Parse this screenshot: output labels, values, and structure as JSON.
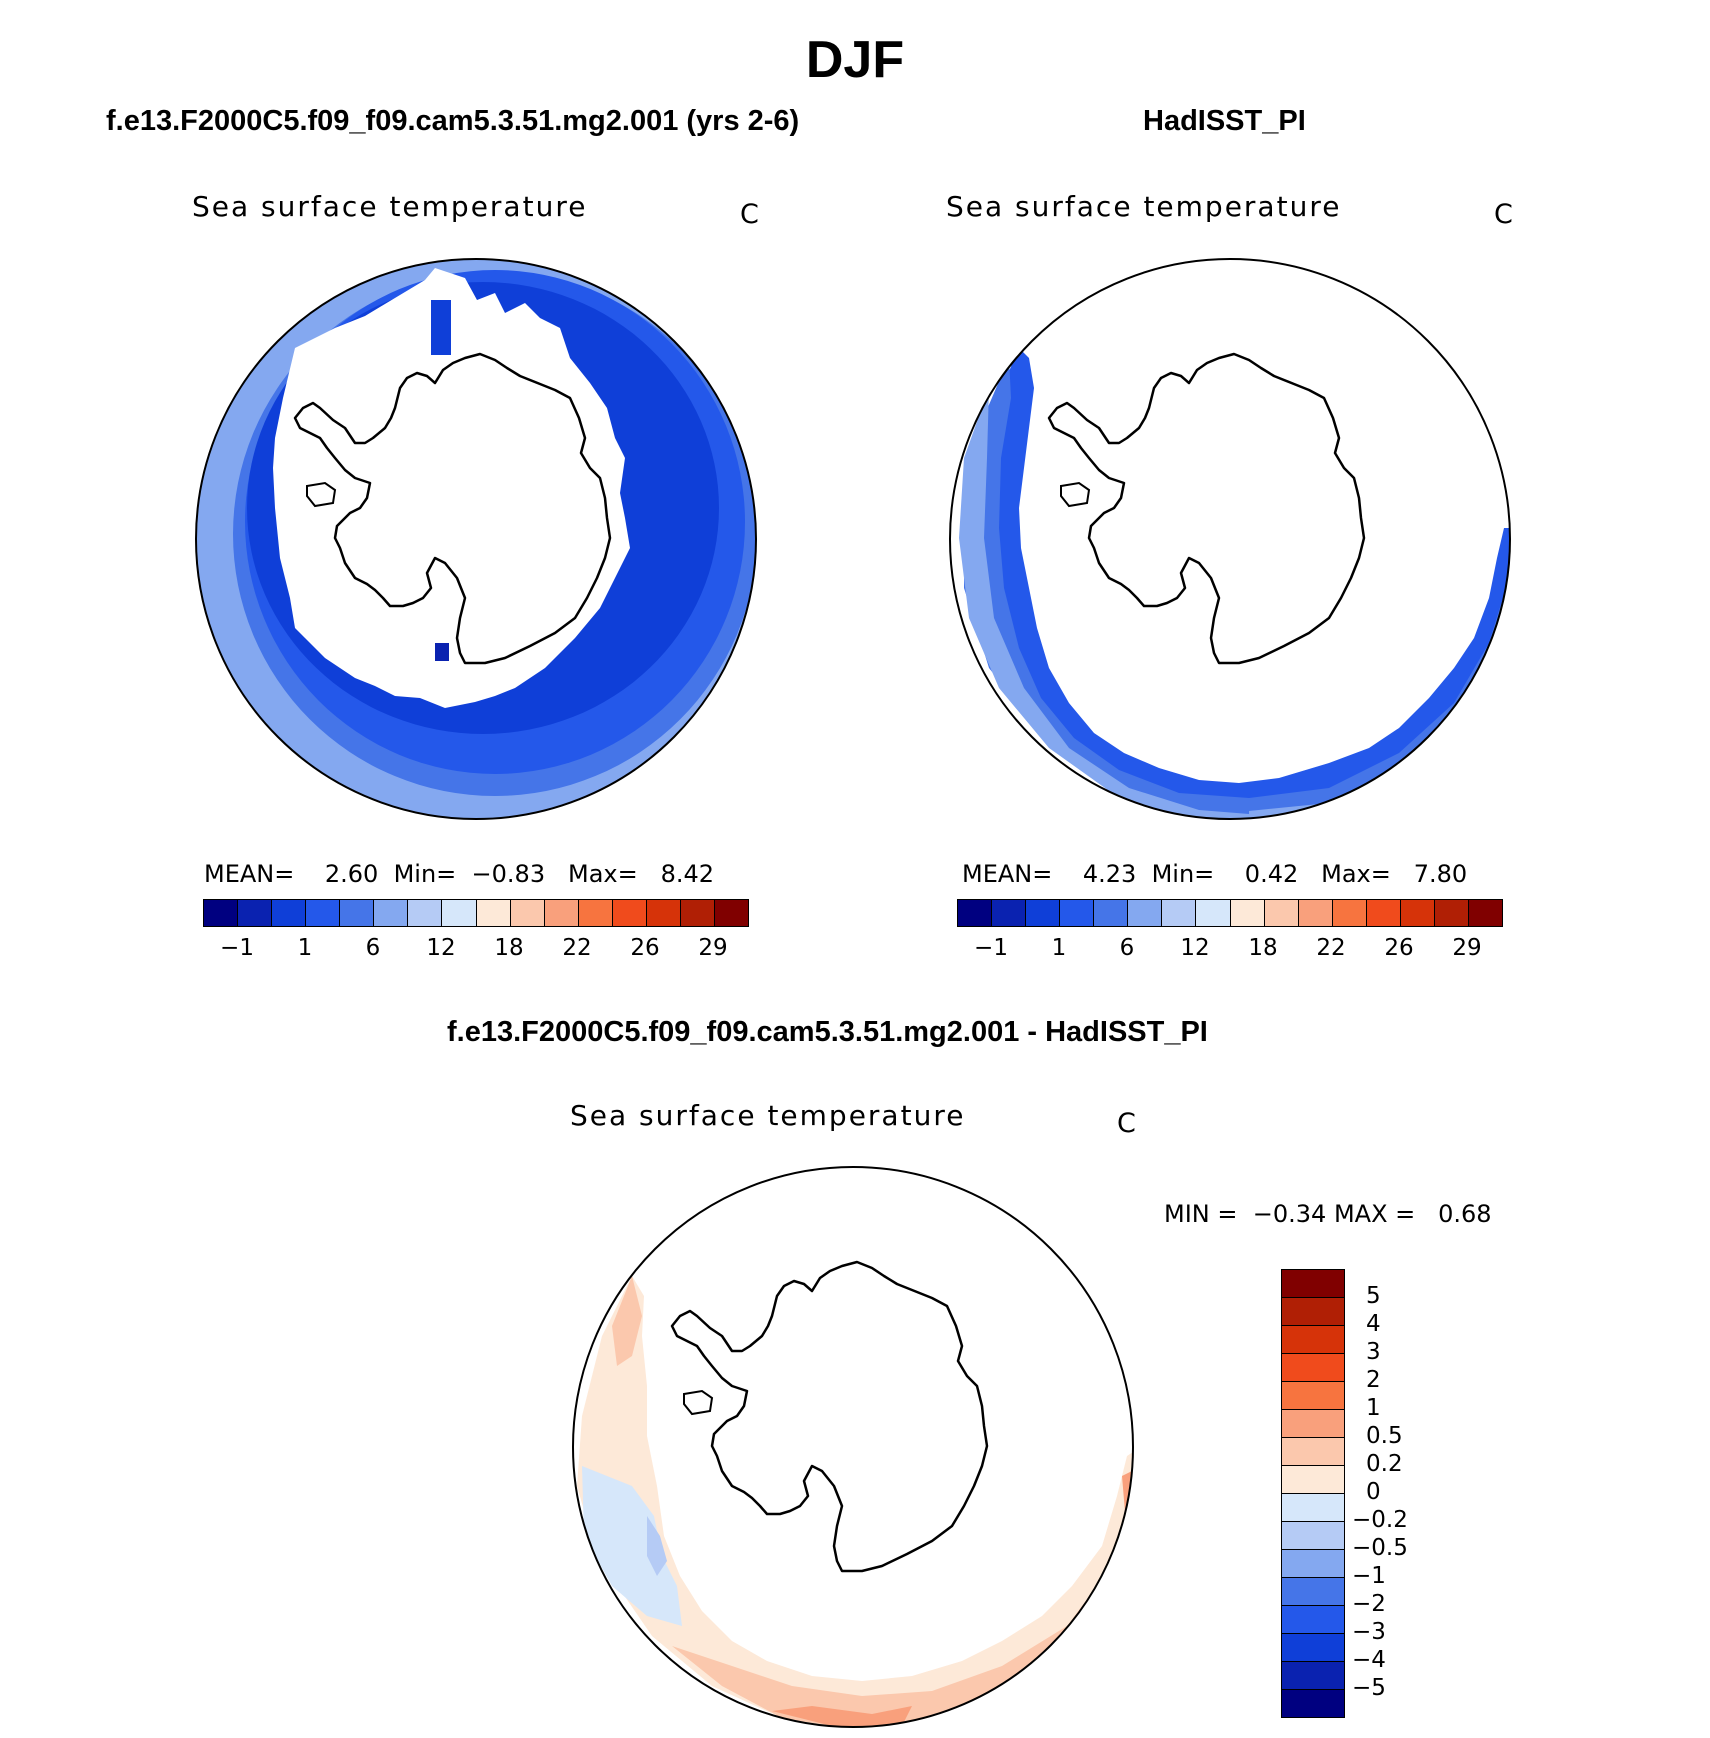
{
  "title": "DJF",
  "panels": {
    "model": {
      "title": "f.e13.F2000C5.f09_f09.cam5.3.51.mg2.001 (yrs 2-6)",
      "variable": "Sea surface temperature",
      "units": "C",
      "mean_label": "MEAN=",
      "mean": "2.60",
      "min_label": "Min=",
      "min": "−0.83",
      "max_label": "Max=",
      "max": "8.42"
    },
    "obs": {
      "title": "HadISST_PI",
      "variable": "Sea surface temperature",
      "units": "C",
      "mean_label": "MEAN=",
      "mean": "4.23",
      "min_label": "Min=",
      "min": "0.42",
      "max_label": "Max=",
      "max": "7.80"
    },
    "diff": {
      "title": "f.e13.F2000C5.f09_f09.cam5.3.51.mg2.001 - HadISST_PI",
      "variable": "Sea surface temperature",
      "units": "C",
      "min_label": "MIN =",
      "min": "−0.34",
      "max_label": "MAX =",
      "max": "0.68"
    }
  },
  "colorbars": {
    "absolute": {
      "colors": [
        "#000080",
        "#0a22b0",
        "#0f3fd8",
        "#2458ea",
        "#4575e8",
        "#84a8f0",
        "#b5cbf5",
        "#d6e7fa",
        "#fde9d8",
        "#fbc8ad",
        "#f9a07c",
        "#f7743f",
        "#f04b1c",
        "#d63309",
        "#b01f05",
        "#800000"
      ],
      "tick_labels": [
        "−1",
        "1",
        "6",
        "12",
        "18",
        "22",
        "26",
        "29"
      ]
    },
    "difference": {
      "colors": [
        "#800000",
        "#b01f05",
        "#d63309",
        "#f04b1c",
        "#f7743f",
        "#f9a07c",
        "#fbc8ad",
        "#fde9d8",
        "#d6e7fa",
        "#b5cbf5",
        "#84a8f0",
        "#4575e8",
        "#2458ea",
        "#0f3fd8",
        "#0a22b0",
        "#000080"
      ],
      "tick_labels": [
        "5",
        "4",
        "3",
        "2",
        "1",
        "0.5",
        "0.2",
        "0",
        "−0.2",
        "−0.5",
        "−1",
        "−2",
        "−3",
        "−4",
        "−5"
      ]
    }
  }
}
